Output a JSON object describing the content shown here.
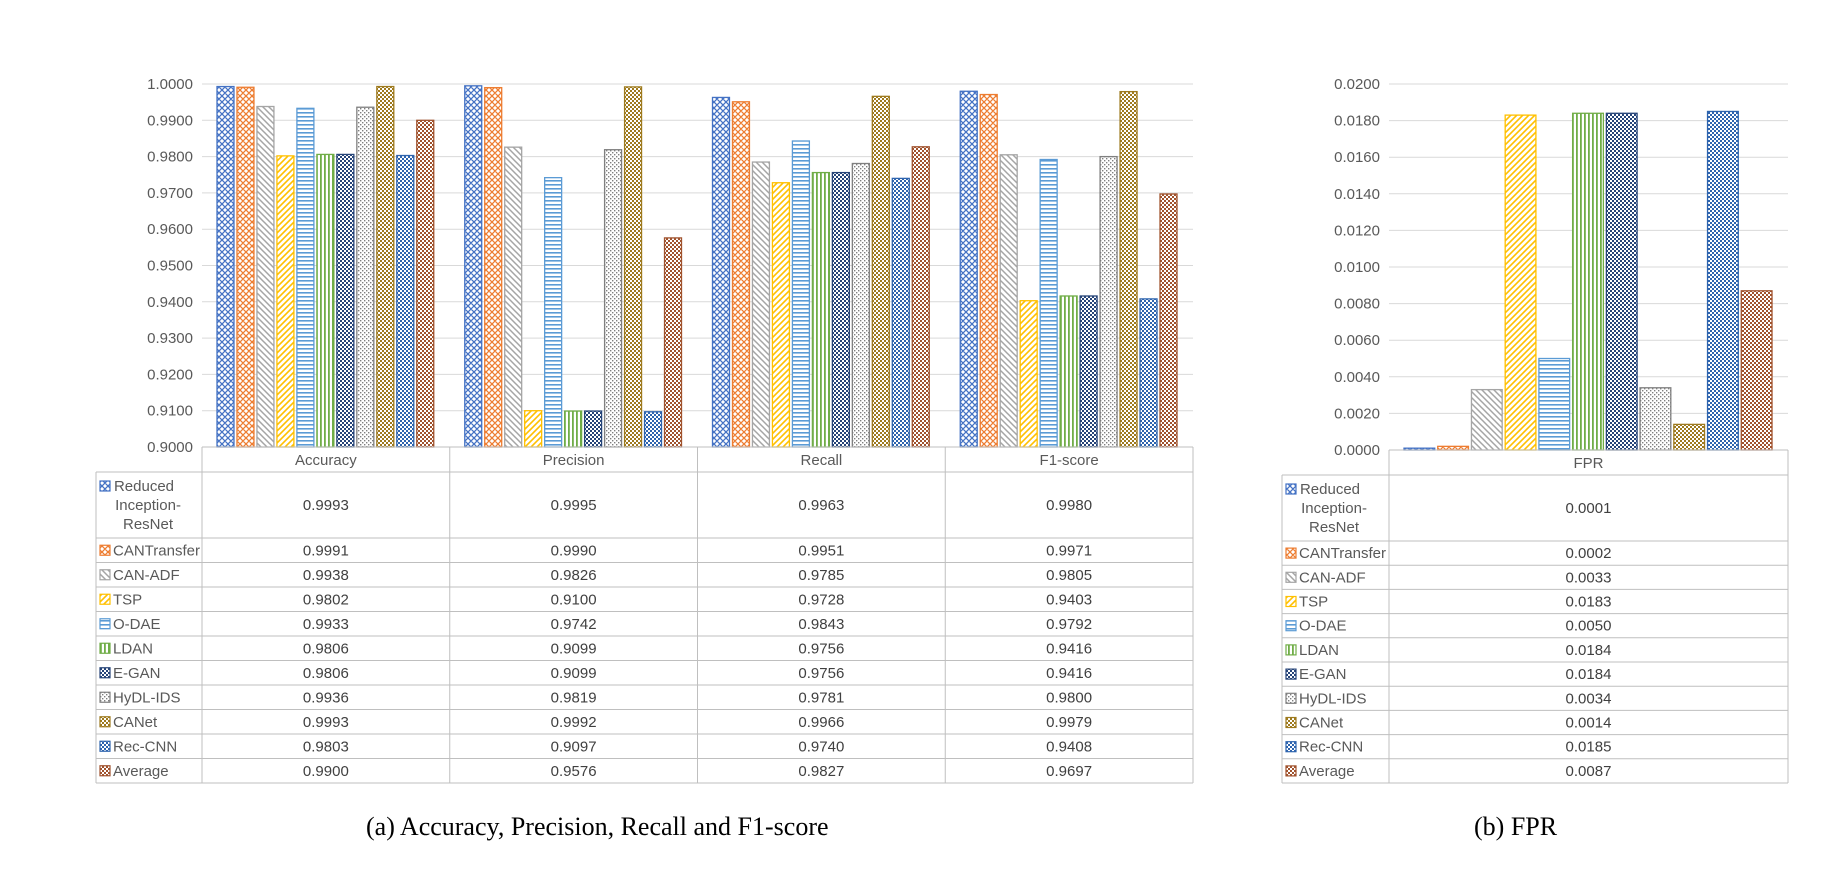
{
  "captions": {
    "a": "(a)  Accuracy, Precision, Recall and F1-score",
    "b": "(b)  FPR"
  },
  "chart_data": [
    {
      "type": "bar",
      "categories": [
        "Accuracy",
        "Precision",
        "Recall",
        "F1-score"
      ],
      "ylim": [
        0.9,
        1.0
      ],
      "yticks": [
        "0.9000",
        "0.9100",
        "0.9200",
        "0.9300",
        "0.9400",
        "0.9500",
        "0.9600",
        "0.9700",
        "0.9800",
        "0.9900",
        "1.0000"
      ],
      "grid": true,
      "legend": "data-table",
      "series": [
        {
          "name": "Reduced Inception-ResNet",
          "color": "#4472C4",
          "pattern": "crosshatch",
          "values": [
            0.9993,
            0.9995,
            0.9963,
            0.998
          ],
          "labels": [
            "0.9993",
            "0.9995",
            "0.9963",
            "0.9980"
          ]
        },
        {
          "name": "CANTransfer",
          "color": "#ED7D31",
          "pattern": "crosshatch",
          "values": [
            0.9991,
            0.999,
            0.9951,
            0.9971
          ],
          "labels": [
            "0.9991",
            "0.9990",
            "0.9951",
            "0.9971"
          ]
        },
        {
          "name": "CAN-ADF",
          "color": "#A5A5A5",
          "pattern": "diagonal-down",
          "values": [
            0.9938,
            0.9826,
            0.9785,
            0.9805
          ],
          "labels": [
            "0.9938",
            "0.9826",
            "0.9785",
            "0.9805"
          ]
        },
        {
          "name": "TSP",
          "color": "#FFC000",
          "pattern": "diagonal-up",
          "values": [
            0.9802,
            0.91,
            0.9728,
            0.9403
          ],
          "labels": [
            "0.9802",
            "0.9100",
            "0.9728",
            "0.9403"
          ]
        },
        {
          "name": "O-DAE",
          "color": "#5B9BD5",
          "pattern": "horizontal",
          "values": [
            0.9933,
            0.9742,
            0.9843,
            0.9792
          ],
          "labels": [
            "0.9933",
            "0.9742",
            "0.9843",
            "0.9792"
          ]
        },
        {
          "name": "LDAN",
          "color": "#70AD47",
          "pattern": "vertical",
          "values": [
            0.9806,
            0.9099,
            0.9756,
            0.9416
          ],
          "labels": [
            "0.9806",
            "0.9099",
            "0.9756",
            "0.9416"
          ]
        },
        {
          "name": "E-GAN",
          "color": "#264478",
          "pattern": "checker",
          "values": [
            0.9806,
            0.9099,
            0.9756,
            0.9416
          ],
          "labels": [
            "0.9806",
            "0.9099",
            "0.9756",
            "0.9416"
          ]
        },
        {
          "name": "HyDL-IDS",
          "color": "#7F7F7F",
          "pattern": "dots",
          "values": [
            0.9936,
            0.9819,
            0.9781,
            0.98
          ],
          "labels": [
            "0.9936",
            "0.9819",
            "0.9781",
            "0.9800"
          ]
        },
        {
          "name": "CANet",
          "color": "#9E7A1E",
          "pattern": "checker",
          "values": [
            0.9993,
            0.9992,
            0.9966,
            0.9979
          ],
          "labels": [
            "0.9993",
            "0.9992",
            "0.9966",
            "0.9979"
          ]
        },
        {
          "name": "Rec-CNN",
          "color": "#2E64AE",
          "pattern": "checker",
          "values": [
            0.9803,
            0.9097,
            0.974,
            0.9408
          ],
          "labels": [
            "0.9803",
            "0.9097",
            "0.9740",
            "0.9408"
          ]
        },
        {
          "name": "Average",
          "color": "#A0522D",
          "pattern": "checker",
          "values": [
            0.99,
            0.9576,
            0.9827,
            0.9697
          ],
          "labels": [
            "0.9900",
            "0.9576",
            "0.9827",
            "0.9697"
          ]
        }
      ]
    },
    {
      "type": "bar",
      "categories": [
        "FPR"
      ],
      "ylim": [
        0.0,
        0.02
      ],
      "yticks": [
        "0.0000",
        "0.0020",
        "0.0040",
        "0.0060",
        "0.0080",
        "0.0100",
        "0.0120",
        "0.0140",
        "0.0160",
        "0.0180",
        "0.0200"
      ],
      "grid": true,
      "legend": "data-table",
      "series": [
        {
          "name": "Reduced Inception-ResNet",
          "color": "#4472C4",
          "pattern": "crosshatch",
          "values": [
            0.0001
          ],
          "labels": [
            "0.0001"
          ]
        },
        {
          "name": "CANTransfer",
          "color": "#ED7D31",
          "pattern": "crosshatch",
          "values": [
            0.0002
          ],
          "labels": [
            "0.0002"
          ]
        },
        {
          "name": "CAN-ADF",
          "color": "#A5A5A5",
          "pattern": "diagonal-down",
          "values": [
            0.0033
          ],
          "labels": [
            "0.0033"
          ]
        },
        {
          "name": "TSP",
          "color": "#FFC000",
          "pattern": "diagonal-up",
          "values": [
            0.0183
          ],
          "labels": [
            "0.0183"
          ]
        },
        {
          "name": "O-DAE",
          "color": "#5B9BD5",
          "pattern": "horizontal",
          "values": [
            0.005
          ],
          "labels": [
            "0.0050"
          ]
        },
        {
          "name": "LDAN",
          "color": "#70AD47",
          "pattern": "vertical",
          "values": [
            0.0184
          ],
          "labels": [
            "0.0184"
          ]
        },
        {
          "name": "E-GAN",
          "color": "#264478",
          "pattern": "checker",
          "values": [
            0.0184
          ],
          "labels": [
            "0.0184"
          ]
        },
        {
          "name": "HyDL-IDS",
          "color": "#7F7F7F",
          "pattern": "dots",
          "values": [
            0.0034
          ],
          "labels": [
            "0.0034"
          ]
        },
        {
          "name": "CANet",
          "color": "#9E7A1E",
          "pattern": "checker",
          "values": [
            0.0014
          ],
          "labels": [
            "0.0014"
          ]
        },
        {
          "name": "Rec-CNN",
          "color": "#2E64AE",
          "pattern": "checker",
          "values": [
            0.0185
          ],
          "labels": [
            "0.0185"
          ]
        },
        {
          "name": "Average",
          "color": "#A0522D",
          "pattern": "checker",
          "values": [
            0.0087
          ],
          "labels": [
            "0.0087"
          ]
        }
      ]
    }
  ]
}
